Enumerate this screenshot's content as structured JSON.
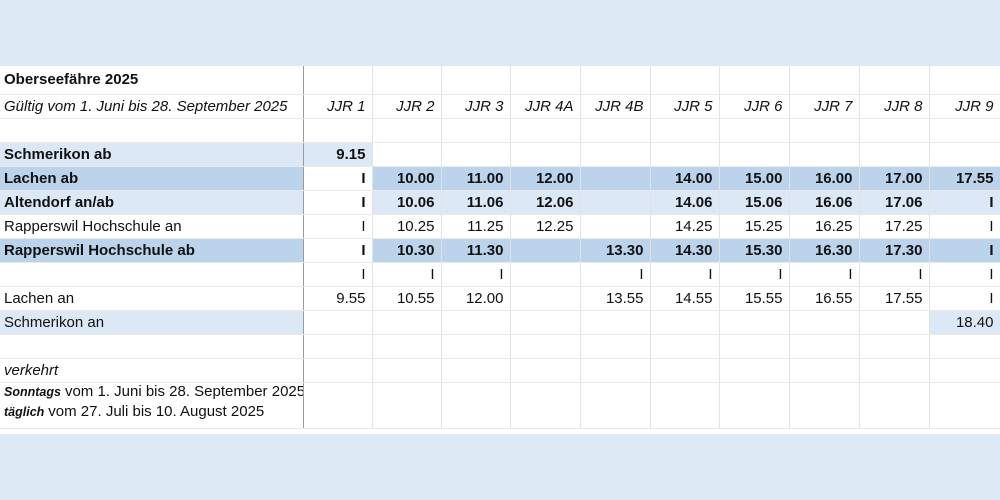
{
  "title": "Oberseefähre 2025",
  "subtitle": "Gültig vom 1. Juni bis 28. September 2025",
  "columns": [
    "JJR 1",
    "JJR 2",
    "JJR 3",
    "JJR 4A",
    "JJR 4B",
    "JJR 5",
    "JJR 6",
    "JJR 7",
    "JJR 8",
    "JJR 9"
  ],
  "rows": [
    {
      "label": "Schmerikon ab",
      "bold": true,
      "style": "light-label",
      "cells": [
        "9.15",
        "",
        "",
        "",
        "",
        "",
        "",
        "",
        "",
        ""
      ]
    },
    {
      "label": "Lachen ab",
      "bold": true,
      "style": "dark",
      "cells": [
        "I",
        "10.00",
        "11.00",
        "12.00",
        "",
        "14.00",
        "15.00",
        "16.00",
        "17.00",
        "17.55"
      ]
    },
    {
      "label": "Altendorf an/ab",
      "bold": true,
      "style": "light",
      "cells": [
        "I",
        "10.06",
        "11.06",
        "12.06",
        "",
        "14.06",
        "15.06",
        "16.06",
        "17.06",
        "I"
      ]
    },
    {
      "label": "Rapperswil Hochschule an",
      "bold": false,
      "style": "none",
      "cells": [
        "I",
        "10.25",
        "11.25",
        "12.25",
        "",
        "14.25",
        "15.25",
        "16.25",
        "17.25",
        "I"
      ]
    },
    {
      "label": "Rapperswil Hochschule ab",
      "bold": true,
      "style": "dark",
      "cells": [
        "I",
        "10.30",
        "11.30",
        "",
        "13.30",
        "14.30",
        "15.30",
        "16.30",
        "17.30",
        "I"
      ]
    },
    {
      "label": "",
      "bold": false,
      "style": "none",
      "cells": [
        "I",
        "I",
        "I",
        "",
        "I",
        "I",
        "I",
        "I",
        "I",
        "I"
      ]
    },
    {
      "label": "Lachen an",
      "bold": false,
      "style": "none",
      "cells": [
        "9.55",
        "10.55",
        "12.00",
        "",
        "13.55",
        "14.55",
        "15.55",
        "16.55",
        "17.55",
        "I"
      ]
    },
    {
      "label": "Schmerikon an",
      "bold": false,
      "style": "schmerikon-an",
      "cells": [
        "",
        "",
        "",
        "",
        "",
        "",
        "",
        "",
        "",
        "18.40"
      ]
    }
  ],
  "notes": {
    "verkehrt": "verkehrt",
    "sonntags_label": "Sonntags",
    "sonntags_text": "vom 1. Juni bis 28. September 2025",
    "taeglich_label": "täglich",
    "taeglich_text": "vom 27. Juli bis 10. August 2025"
  },
  "colors": {
    "background": "#dde9f5",
    "highlight_light": "#dce8f6",
    "highlight_dark": "#bcd3ec"
  }
}
